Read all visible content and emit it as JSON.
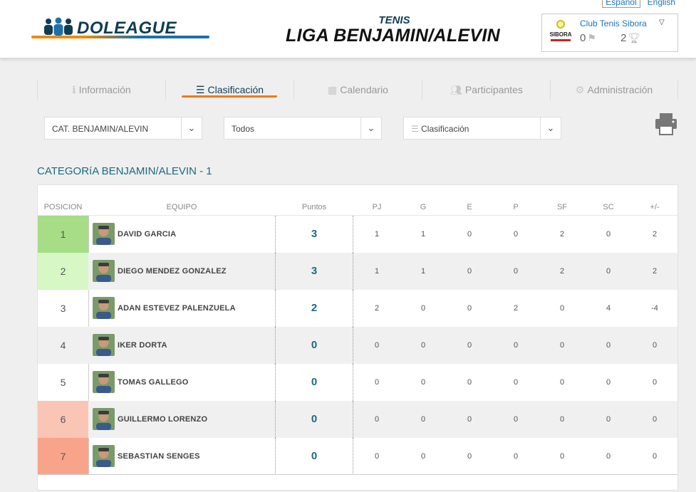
{
  "languages": [
    "Español",
    "English"
  ],
  "logo": {
    "brand": "DOLEAGUE",
    "mark": "people-logo-icon"
  },
  "header": {
    "sport": "TENIS",
    "league": "LIGA BENJAMIN/ALEVIN"
  },
  "club": {
    "logo_text": "SIBORA",
    "name": "Club Tenis Sibora",
    "flags": "0",
    "trophies": "2"
  },
  "tabs": [
    {
      "label": "Información",
      "icon": "info-icon"
    },
    {
      "label": "Clasificación",
      "icon": "list-icon"
    },
    {
      "label": "Calendario",
      "icon": "calendar-icon"
    },
    {
      "label": "Participantes",
      "icon": "users-icon"
    },
    {
      "label": "Administración",
      "icon": "gear-icon"
    }
  ],
  "filters": {
    "category": "CAT. BENJAMIN/ALEVIN",
    "scope": "Todos",
    "view": "Clasificación"
  },
  "category_title": "CATEGORíA BENJAMIN/ALEVIN - 1",
  "table": {
    "columns": [
      "POSICION",
      "EQUIPO",
      "Puntos",
      "PJ",
      "G",
      "E",
      "P",
      "SF",
      "SC",
      "+/-"
    ],
    "rows": [
      {
        "pos": "1",
        "name": "DAVID GARCIA",
        "pts": "3",
        "pj": "1",
        "g": "1",
        "e": "0",
        "p": "0",
        "sf": "2",
        "sc": "0",
        "diff": "2",
        "pos_color": "#a6dd86"
      },
      {
        "pos": "2",
        "name": "DIEGO MENDEZ GONZALEZ",
        "pts": "3",
        "pj": "1",
        "g": "1",
        "e": "0",
        "p": "0",
        "sf": "2",
        "sc": "0",
        "diff": "2",
        "pos_color": "#d7f7c5"
      },
      {
        "pos": "3",
        "name": "ADAN ESTEVEZ PALENZUELA",
        "pts": "2",
        "pj": "2",
        "g": "0",
        "e": "0",
        "p": "2",
        "sf": "0",
        "sc": "4",
        "diff": "-4",
        "pos_color": ""
      },
      {
        "pos": "4",
        "name": "IKER DORTA",
        "pts": "0",
        "pj": "0",
        "g": "0",
        "e": "0",
        "p": "0",
        "sf": "0",
        "sc": "0",
        "diff": "0",
        "pos_color": ""
      },
      {
        "pos": "5",
        "name": "TOMAS GALLEGO",
        "pts": "0",
        "pj": "0",
        "g": "0",
        "e": "0",
        "p": "0",
        "sf": "0",
        "sc": "0",
        "diff": "0",
        "pos_color": ""
      },
      {
        "pos": "6",
        "name": "GUILLERMO LORENZO",
        "pts": "0",
        "pj": "0",
        "g": "0",
        "e": "0",
        "p": "0",
        "sf": "0",
        "sc": "0",
        "diff": "0",
        "pos_color": "#fbc5b5"
      },
      {
        "pos": "7",
        "name": "SEBASTIAN SENGES",
        "pts": "0",
        "pj": "0",
        "g": "0",
        "e": "0",
        "p": "0",
        "sf": "0",
        "sc": "0",
        "diff": "0",
        "pos_color": "#f8a48a"
      }
    ]
  },
  "colors": {
    "accent": "#1b6a80",
    "tab_underline": "#f07b00",
    "brand_dark": "#0f3d53"
  }
}
